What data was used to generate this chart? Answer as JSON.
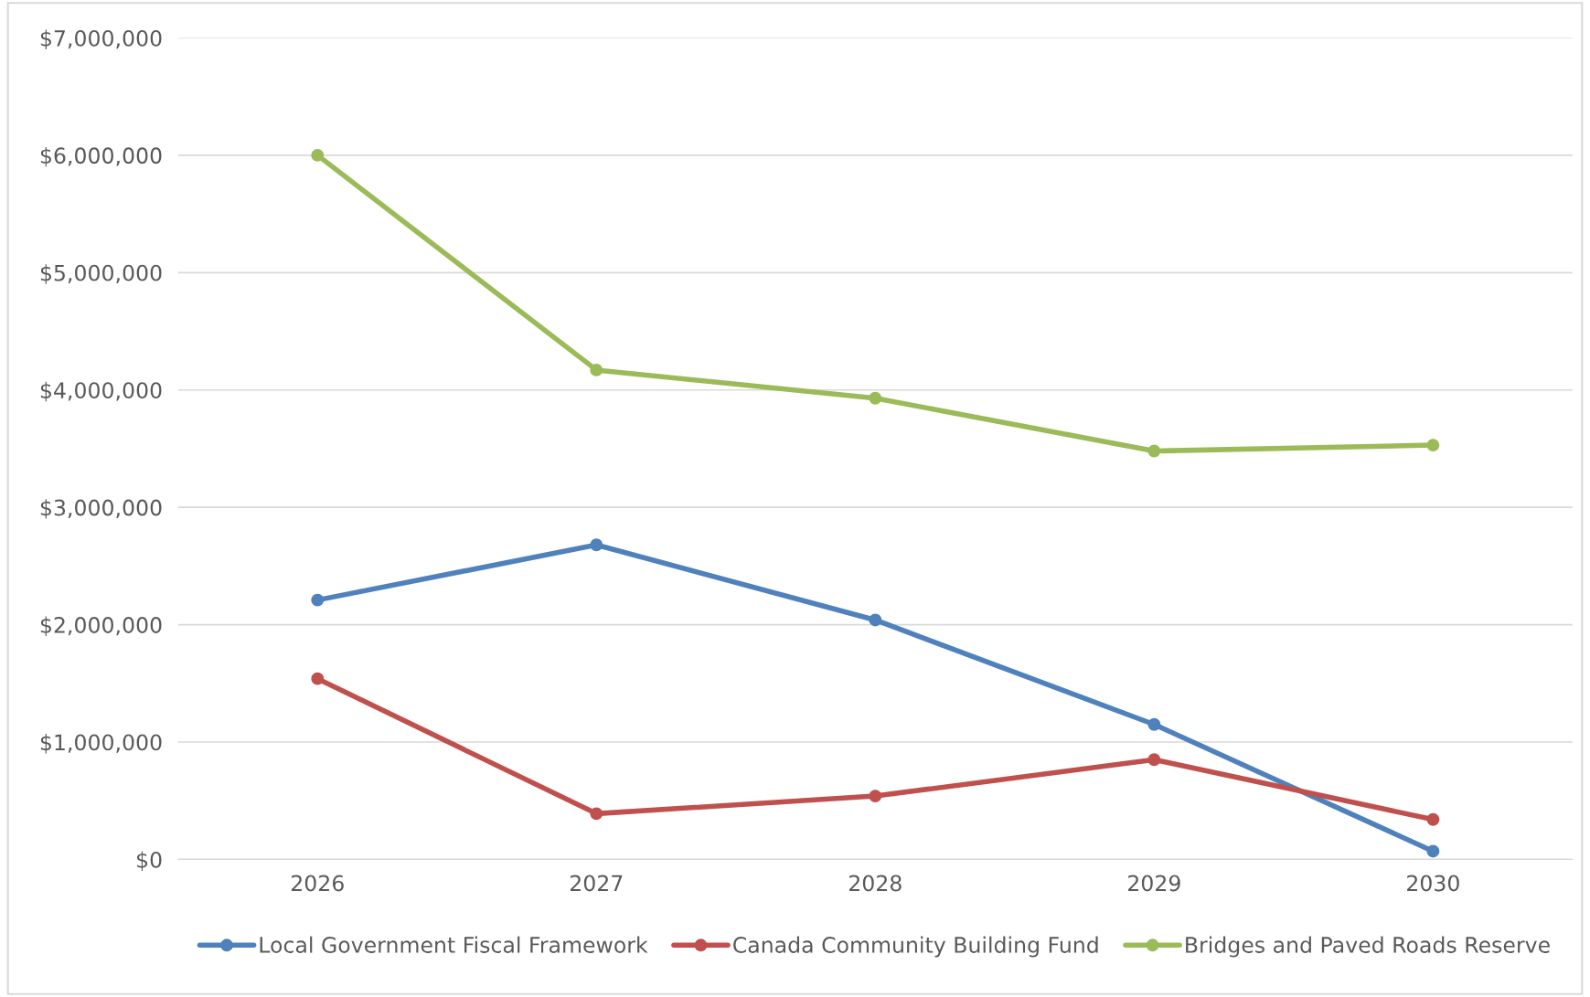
{
  "chart_data": {
    "type": "line",
    "categories": [
      "2026",
      "2027",
      "2028",
      "2029",
      "2030"
    ],
    "series": [
      {
        "name": "Local Government Fiscal Framework",
        "color": "#4f81bd",
        "values": [
          2210000,
          2680000,
          2040000,
          1150000,
          70000
        ]
      },
      {
        "name": "Canada Community Building Fund",
        "color": "#c0504d",
        "values": [
          1540000,
          390000,
          540000,
          850000,
          340000
        ]
      },
      {
        "name": "Bridges and Paved Roads Reserve",
        "color": "#9bbb59",
        "values": [
          6000000,
          4170000,
          3930000,
          3480000,
          3530000
        ]
      }
    ],
    "ylim": [
      0,
      7000000
    ],
    "yticks": [
      {
        "value": 0,
        "label": "$0"
      },
      {
        "value": 1000000,
        "label": "$1,000,000"
      },
      {
        "value": 2000000,
        "label": "$2,000,000"
      },
      {
        "value": 3000000,
        "label": "$3,000,000"
      },
      {
        "value": 4000000,
        "label": "$4,000,000"
      },
      {
        "value": 5000000,
        "label": "$5,000,000"
      },
      {
        "value": 6000000,
        "label": "$6,000,000"
      },
      {
        "value": 7000000,
        "label": "$7,000,000"
      }
    ],
    "grid": "y",
    "legend": "bottom",
    "marker": "circle",
    "line_style": "solid"
  }
}
